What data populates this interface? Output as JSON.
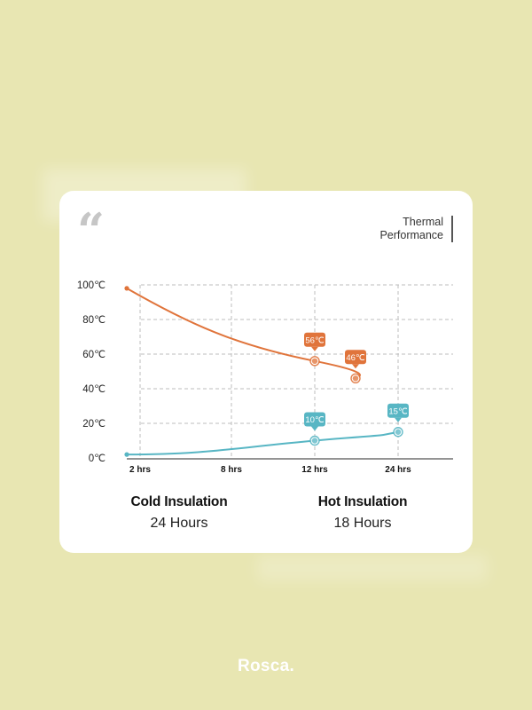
{
  "header": {
    "title_line1": "Thermal",
    "title_line2": "Performance",
    "quote_glyph": "“"
  },
  "chart_data": {
    "type": "line",
    "x_labels": [
      "2 hrs",
      "8 hrs",
      "12 hrs",
      "24 hrs"
    ],
    "y_ticks": [
      "0℃",
      "20℃",
      "40℃",
      "60℃",
      "80℃",
      "100℃"
    ],
    "ylim": [
      0,
      100
    ],
    "grid": true,
    "series": [
      {
        "key": "hot",
        "color": "#e0743b",
        "points": [
          {
            "x": "start",
            "y": 98
          },
          {
            "x": "12 hrs",
            "y": 56,
            "label": "56℃"
          },
          {
            "x": "18 hrs",
            "y": 46,
            "label": "46℃"
          }
        ]
      },
      {
        "key": "cold",
        "color": "#58b6c4",
        "points": [
          {
            "x": "start",
            "y": 2
          },
          {
            "x": "12 hrs",
            "y": 10,
            "label": "10℃"
          },
          {
            "x": "24 hrs",
            "y": 15,
            "label": "15℃"
          }
        ]
      }
    ]
  },
  "summary": {
    "cold": {
      "heading": "Cold Insulation",
      "value": "24 Hours"
    },
    "hot": {
      "heading": "Hot Insulation",
      "value": "18 Hours"
    }
  },
  "brand": {
    "name": "Rosca."
  }
}
